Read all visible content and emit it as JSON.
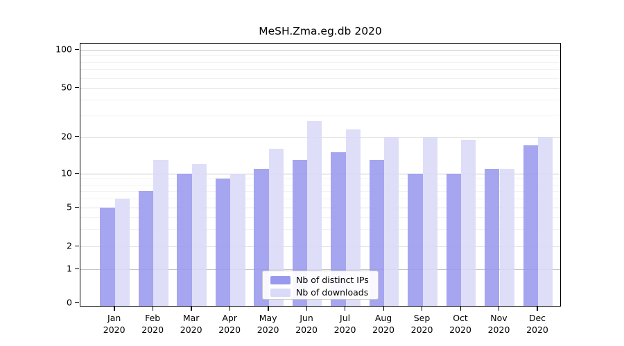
{
  "title": "MeSH.Zma.eg.db 2020",
  "chart_data": {
    "type": "bar",
    "title": "MeSH.Zma.eg.db 2020",
    "categories": [
      "Jan",
      "Feb",
      "Mar",
      "Apr",
      "May",
      "Jun",
      "Jul",
      "Aug",
      "Sep",
      "Oct",
      "Nov",
      "Dec"
    ],
    "category_year": "2020",
    "series": [
      {
        "name": "Nb of distinct IPs",
        "color": "#9898ee",
        "values": [
          5,
          7,
          10,
          9,
          11,
          13,
          15,
          13,
          10,
          10,
          11,
          17
        ]
      },
      {
        "name": "Nb of downloads",
        "color": "#d9d9f8",
        "values": [
          6,
          13,
          12,
          10,
          16,
          27,
          23,
          20,
          20,
          19,
          11,
          20
        ]
      }
    ],
    "xlabel": "",
    "ylabel": "",
    "y_axis": {
      "scale": "log-like (log(1+x) style with 0 shown)",
      "tick_labels": [
        "100",
        "50",
        "20",
        "10",
        "5",
        "2",
        "1",
        "0"
      ],
      "ticks": [
        100,
        50,
        20,
        10,
        5,
        2,
        1,
        0
      ],
      "secondary_grid_values": [
        2,
        5,
        20,
        50
      ],
      "major_grid_values": [
        1,
        10,
        100
      ],
      "minor_grid_values": [
        3,
        4,
        6,
        7,
        8,
        9,
        30,
        40,
        60,
        70,
        80,
        90
      ],
      "range": [
        0,
        110
      ]
    },
    "grid": true,
    "legend_position": "inside-bottom-center",
    "legend_entries": [
      "Nb of distinct IPs",
      "Nb of downloads"
    ]
  }
}
